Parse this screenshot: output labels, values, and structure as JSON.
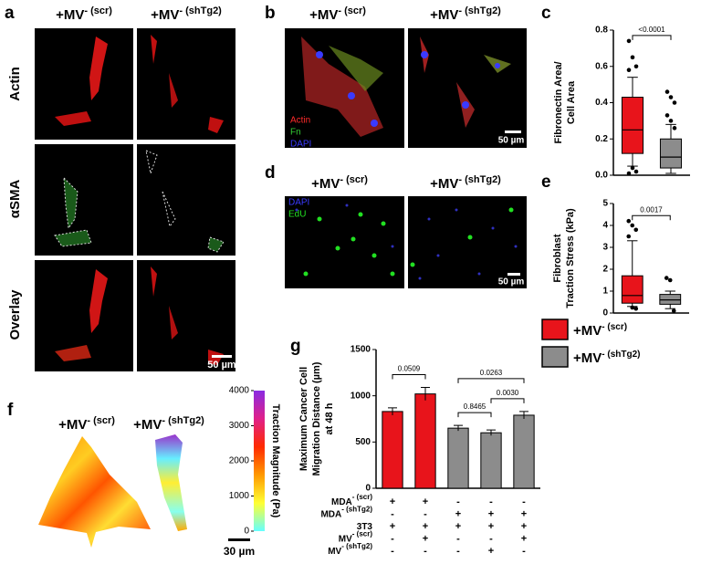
{
  "panel_labels": [
    "a",
    "b",
    "c",
    "d",
    "e",
    "f",
    "g"
  ],
  "conditions": [
    {
      "base": "+MV",
      "sup": "- (scr)"
    },
    {
      "base": "+MV",
      "sup": "- (shTg2)"
    }
  ],
  "panel_a": {
    "rows": [
      "Actin",
      "αSMA",
      "Overlay"
    ],
    "scale_bar": "50 µm"
  },
  "panel_b": {
    "channels": [
      {
        "name": "Actin",
        "color": "#ff2a2a"
      },
      {
        "name": "Fn",
        "color": "#33c933"
      },
      {
        "name": "DAPI",
        "color": "#3a3aff"
      }
    ],
    "scale_bar": "50 µm"
  },
  "panel_d": {
    "channels": [
      {
        "name": "DAPI",
        "color": "#3a3aff"
      },
      {
        "name": "EdU",
        "color": "#22e022"
      }
    ],
    "scale_bar": "50 µm"
  },
  "panel_f": {
    "colorbar": {
      "label": "Traction Magnitude (Pa)",
      "lim": [
        0,
        4000
      ],
      "ticks": [
        0,
        1000,
        2000,
        3000,
        4000
      ],
      "colors": [
        "#66ffff",
        "#ffff33",
        "#ff9900",
        "#ff2a00",
        "#e0208a",
        "#8a2be2"
      ]
    },
    "scale_bar": "30 µm"
  },
  "chart_data": [
    {
      "type": "box",
      "ylabel": [
        "Fibronectin Area/",
        "Cell Area"
      ],
      "ylim": [
        0,
        0.8
      ],
      "yticks": [
        {
          "value": 0,
          "label": "0.0"
        },
        0.2,
        0.4,
        0.6,
        0.8
      ],
      "boxes": [
        {
          "color": "#e8141b",
          "whisker_low": 0.05,
          "q1": 0.12,
          "median": 0.25,
          "q3": 0.43,
          "whisker_high": 0.54,
          "outliers": [
            0.74,
            0.65,
            0.6,
            0.58,
            0.04,
            0.02,
            0.01
          ]
        },
        {
          "color": "#8c8c8c",
          "whisker_low": 0.01,
          "q1": 0.04,
          "median": 0.1,
          "q3": 0.2,
          "whisker_high": 0.28,
          "outliers": [
            0.46,
            0.43,
            0.4,
            0.33,
            0.3,
            0.26
          ]
        }
      ],
      "significance": [
        {
          "between": [
            0,
            1
          ],
          "label": "<0.0001"
        }
      ]
    },
    {
      "type": "box",
      "ylabel": [
        "Fibroblast",
        "Traction Stress (kPa)"
      ],
      "ylim": [
        0,
        5
      ],
      "yticks": [
        0,
        1,
        2,
        3,
        4,
        5
      ],
      "boxes": [
        {
          "color": "#e8141b",
          "whisker_low": 0.3,
          "q1": 0.45,
          "median": 0.8,
          "q3": 1.7,
          "whisker_high": 3.3,
          "outliers": [
            4.2,
            4.0,
            3.8,
            3.5,
            0.25,
            0.2
          ]
        },
        {
          "color": "#8c8c8c",
          "whisker_low": 0.2,
          "q1": 0.4,
          "median": 0.6,
          "q3": 0.85,
          "whisker_high": 1.0,
          "outliers": [
            1.6,
            1.5,
            0.1
          ]
        }
      ],
      "significance": [
        {
          "between": [
            0,
            1
          ],
          "label": "0.0017"
        }
      ],
      "legend": [
        {
          "name": "+MV",
          "name_sup": "- (scr)",
          "color": "#e8141b"
        },
        {
          "name": "+MV",
          "name_sup": "- (shTg2)",
          "color": "#8c8c8c"
        }
      ]
    },
    {
      "type": "bar",
      "ylabel": [
        "Maximum Cancer Cell",
        "Migration Distance (µm)",
        "at 48 h"
      ],
      "ylim": [
        0,
        1500
      ],
      "yticks": [
        0,
        500,
        1000,
        1500
      ],
      "values": [
        830,
        1020,
        650,
        600,
        790
      ],
      "errors": [
        40,
        70,
        30,
        30,
        40
      ],
      "colors": [
        "#e8141b",
        "#e8141b",
        "#8c8c8c",
        "#8c8c8c",
        "#8c8c8c"
      ],
      "significance": [
        {
          "between": [
            0,
            1
          ],
          "label": "0.0509"
        },
        {
          "between": [
            2,
            3
          ],
          "label": "0.8465"
        },
        {
          "between": [
            3,
            4
          ],
          "label": "0.0030"
        },
        {
          "between": [
            2,
            4
          ],
          "label": "0.0263"
        }
      ],
      "conditions_table": [
        {
          "label": "MDA",
          "label_sup": "- (scr)",
          "marks": [
            "+",
            "+",
            "-",
            "-",
            "-"
          ]
        },
        {
          "label": "MDA",
          "label_sup": "- (shTg2)",
          "marks": [
            "-",
            "-",
            "+",
            "+",
            "+"
          ]
        },
        {
          "label": "3T3",
          "marks": [
            "+",
            "+",
            "+",
            "+",
            "+"
          ]
        },
        {
          "label": "MV",
          "label_sup": "- (scr)",
          "marks": [
            "-",
            "+",
            "-",
            "-",
            "+"
          ]
        },
        {
          "label": "MV",
          "label_sup": "- (shTg2)",
          "marks": [
            "-",
            "-",
            "-",
            "+",
            "-"
          ]
        }
      ]
    }
  ]
}
